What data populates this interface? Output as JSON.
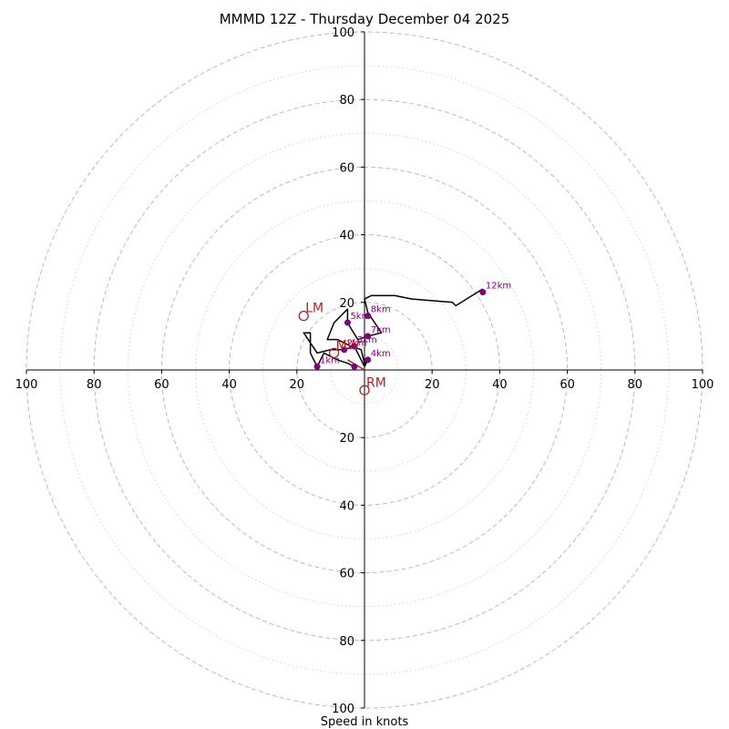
{
  "chart_data": {
    "type": "hodograph",
    "title": "MMMD 12Z - Thursday December 04 2025",
    "xlabel": "Speed in knots",
    "max_speed": 100,
    "rings_major": [
      20,
      40,
      60,
      80,
      100
    ],
    "rings_minor": [
      10,
      30,
      50,
      70,
      90
    ],
    "tick_labels_x": [
      "100",
      "80",
      "60",
      "40",
      "20",
      "20",
      "40",
      "60",
      "80",
      "100"
    ],
    "tick_labels_y": [
      "100",
      "80",
      "60",
      "40",
      "20",
      "20",
      "40",
      "60",
      "80",
      "100"
    ],
    "tick_values": [
      -100,
      -80,
      -60,
      -40,
      -20,
      20,
      40,
      60,
      80,
      100
    ],
    "wind_profile": [
      {
        "u": -3,
        "v": 1
      },
      {
        "u": -5,
        "v": 2
      },
      {
        "u": -8,
        "v": 3
      },
      {
        "u": -10,
        "v": 4
      },
      {
        "u": -12,
        "v": 5
      },
      {
        "u": -14,
        "v": 1
      },
      {
        "u": -16,
        "v": 5
      },
      {
        "u": -16,
        "v": 11
      },
      {
        "u": -18,
        "v": 11
      },
      {
        "u": -14,
        "v": 5
      },
      {
        "u": -10,
        "v": 6
      },
      {
        "u": -6,
        "v": 6
      },
      {
        "u": -3,
        "v": 7
      },
      {
        "u": -1,
        "v": 3
      },
      {
        "u": 0,
        "v": 1
      },
      {
        "u": 1,
        "v": 3
      },
      {
        "u": 0,
        "v": 2
      },
      {
        "u": -1,
        "v": 6
      },
      {
        "u": -4,
        "v": 7
      },
      {
        "u": -8,
        "v": 9
      },
      {
        "u": -11,
        "v": 9
      },
      {
        "u": -9,
        "v": 14
      },
      {
        "u": -5,
        "v": 18
      },
      {
        "u": -5,
        "v": 14
      },
      {
        "u": -2,
        "v": 9
      },
      {
        "u": 1,
        "v": 10
      },
      {
        "u": 5,
        "v": 11
      },
      {
        "u": 3,
        "v": 14
      },
      {
        "u": 1,
        "v": 17
      },
      {
        "u": 0,
        "v": 21
      },
      {
        "u": 2,
        "v": 22
      },
      {
        "u": 9,
        "v": 22
      },
      {
        "u": 14,
        "v": 21
      },
      {
        "u": 26,
        "v": 20
      },
      {
        "u": 27,
        "v": 19
      },
      {
        "u": 35,
        "v": 24
      }
    ],
    "height_markers": [
      {
        "label": "1km",
        "u": -14,
        "v": 1
      },
      {
        "label": "2km",
        "u": -6,
        "v": 6
      },
      {
        "label": "3km",
        "u": -3,
        "v": 7
      },
      {
        "label": "4km",
        "u": 1,
        "v": 3
      },
      {
        "label": "5km",
        "u": -5,
        "v": 14
      },
      {
        "label": "7km",
        "u": 1,
        "v": 10
      },
      {
        "label": "8km",
        "u": 1,
        "v": 16
      },
      {
        "label": "12km",
        "u": 35,
        "v": 23
      },
      {
        "label": "",
        "u": -3,
        "v": 1
      }
    ],
    "storm_motion": [
      {
        "label": "LM",
        "u": -18,
        "v": 16
      },
      {
        "label": "RM",
        "u": 0,
        "v": -6
      },
      {
        "label": "MW",
        "u": -9,
        "v": 5
      }
    ],
    "mean_wind_vector": {
      "u": -5,
      "v": 3
    },
    "colors": {
      "profile": "#000000",
      "markers": "#800080",
      "motion": "#b22222",
      "grid_major": "#bbbbbb",
      "grid_minor": "#d0d0d0",
      "axes": "#000000"
    }
  }
}
